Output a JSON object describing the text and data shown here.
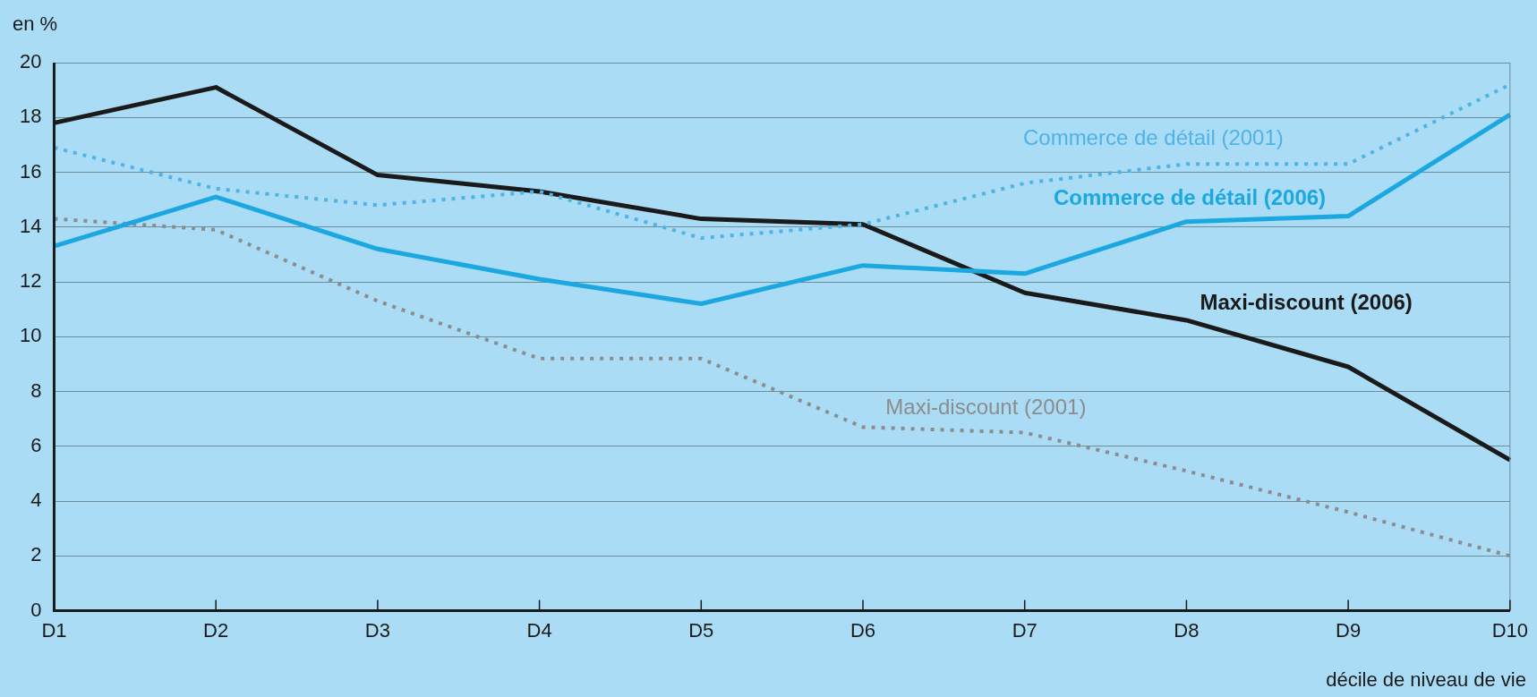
{
  "chart_data": {
    "type": "line",
    "ylabel": "en %",
    "xlabel": "décile de niveau de vie",
    "categories": [
      "D1",
      "D2",
      "D3",
      "D4",
      "D5",
      "D6",
      "D7",
      "D8",
      "D9",
      "D10"
    ],
    "ylim": [
      0,
      20
    ],
    "yticks": [
      0,
      2,
      4,
      6,
      8,
      10,
      12,
      14,
      16,
      18,
      20
    ],
    "grid": "y",
    "legend": false,
    "marker": "none",
    "series": [
      {
        "name": "Commerce de détail (2001)",
        "color": "#4fb3e6",
        "line_style": "dotted",
        "values": [
          16.9,
          15.4,
          14.8,
          15.3,
          13.6,
          14.1,
          15.6,
          16.3,
          16.3,
          19.2
        ]
      },
      {
        "name": "Commerce de détail (2006)",
        "color": "#1ba8e0",
        "line_style": "solid",
        "values": [
          13.3,
          15.1,
          13.2,
          12.1,
          11.2,
          12.6,
          12.3,
          14.2,
          14.4,
          18.1
        ]
      },
      {
        "name": "Maxi-discount (2006)",
        "color": "#1a1a1a",
        "line_style": "solid",
        "values": [
          17.8,
          19.1,
          15.9,
          15.3,
          14.3,
          14.1,
          11.6,
          10.6,
          8.9,
          5.5
        ]
      },
      {
        "name": "Maxi-discount (2001)",
        "color": "#8c8c8c",
        "line_style": "dotted",
        "values": [
          14.3,
          13.9,
          11.3,
          9.2,
          9.2,
          6.7,
          6.5,
          5.1,
          3.6,
          2.0
        ]
      }
    ]
  }
}
